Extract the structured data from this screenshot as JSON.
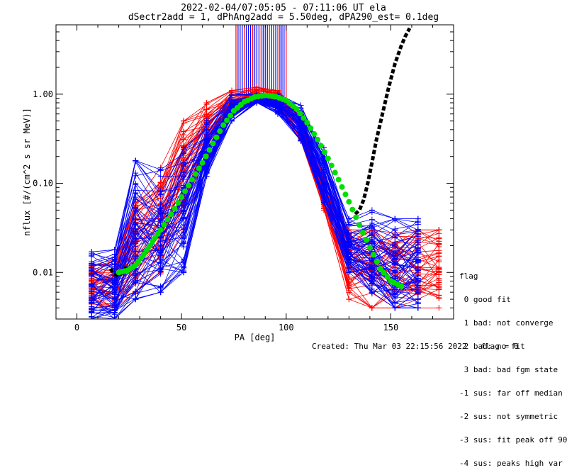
{
  "header": {
    "title": "2022-02-04/07:05:05 - 07:11:06 UT ela",
    "subtitle": "dSectr2add = 1, dPhAng2add = 5.50deg, dPA290_est=   0.1deg"
  },
  "legend": {
    "title": "flag",
    "items": [
      " 0 good fit",
      " 1 bad: not converge",
      " 2 bad: no fit",
      " 3 bad: bad fgm state",
      "-1 sus: far off median",
      "-2 sus: not symmetric",
      "-3 sus: fit peak off 90",
      "-4 sus: peaks high var"
    ]
  },
  "footer": {
    "created": "Created: Thu Mar 03 22:15:56 2022",
    "flag": "flag = 0"
  },
  "colors": {
    "red_series": "#ff0000",
    "blue_series": "#0000ff",
    "fit_curve": "#00e000",
    "black_fit": "#000000"
  },
  "chart_data": {
    "type": "line",
    "xlabel": "PA [deg]",
    "ylabel": "nflux [#/(cm^2 s sr MeV)]",
    "xlim": [
      -10,
      180
    ],
    "ylim": [
      0.003,
      6.0
    ],
    "yscale": "log",
    "xticks": [
      0,
      50,
      100,
      150
    ],
    "yticks": [
      0.01,
      0.1,
      1.0
    ],
    "ytick_labels": [
      "0.01",
      "0.10",
      "1.00"
    ],
    "pa_bins": [
      7,
      18,
      28,
      40,
      51,
      62,
      74,
      86,
      96,
      107,
      118,
      130,
      141,
      152,
      163,
      173
    ],
    "red_envelope": {
      "x": [
        7,
        18,
        28,
        40,
        51,
        62,
        74,
        86,
        96,
        107,
        118,
        130,
        141,
        152,
        163,
        173
      ],
      "lower": [
        0.004,
        0.004,
        0.006,
        0.01,
        0.03,
        0.2,
        0.6,
        0.8,
        0.7,
        0.3,
        0.05,
        0.005,
        0.004,
        0.004,
        0.004,
        0.004
      ],
      "upper": [
        0.012,
        0.014,
        0.06,
        0.15,
        0.5,
        0.8,
        1.1,
        1.2,
        1.1,
        0.6,
        0.12,
        0.03,
        0.03,
        0.03,
        0.03,
        0.03
      ]
    },
    "blue_envelope": {
      "x": [
        7,
        18,
        28,
        40,
        51,
        62,
        74,
        86,
        96,
        107,
        118,
        130,
        141,
        152,
        163
      ],
      "lower": [
        0.003,
        0.003,
        0.005,
        0.006,
        0.01,
        0.12,
        0.5,
        0.8,
        0.6,
        0.3,
        0.06,
        0.01,
        0.006,
        0.004,
        0.004
      ],
      "upper": [
        0.017,
        0.018,
        0.18,
        0.17,
        0.25,
        0.5,
        1.0,
        1.0,
        1.0,
        0.75,
        0.25,
        0.04,
        0.05,
        0.04,
        0.04
      ]
    },
    "fit_curve": {
      "x": [
        20,
        24,
        28,
        32,
        36,
        40,
        45,
        50,
        55,
        60,
        65,
        70,
        75,
        80,
        85,
        90,
        95,
        100,
        105,
        110,
        115,
        120,
        125,
        130,
        135,
        140,
        145,
        150,
        155
      ],
      "y": [
        0.01,
        0.0105,
        0.012,
        0.016,
        0.022,
        0.03,
        0.045,
        0.07,
        0.11,
        0.17,
        0.28,
        0.45,
        0.65,
        0.82,
        0.93,
        0.97,
        0.94,
        0.85,
        0.68,
        0.48,
        0.31,
        0.19,
        0.11,
        0.062,
        0.034,
        0.019,
        0.011,
        0.008,
        0.007
      ]
    },
    "black_fit_left": {
      "x": [
        16,
        18,
        20,
        22,
        24
      ],
      "y": [
        0.011,
        0.0095,
        0.0092,
        0.01,
        0.012
      ]
    },
    "black_fit_right": {
      "x": [
        133,
        135,
        137,
        139,
        141,
        143,
        146,
        149,
        152,
        155,
        157,
        159
      ],
      "y": [
        0.045,
        0.05,
        0.065,
        0.1,
        0.17,
        0.3,
        0.6,
        1.2,
        2.2,
        3.5,
        4.5,
        5.5
      ]
    },
    "vertical_lines": {
      "x": [
        76,
        77,
        78,
        79,
        80,
        81,
        82,
        83,
        84,
        85,
        86,
        87,
        88,
        89,
        90,
        91,
        92,
        93,
        94,
        95,
        96,
        97,
        98,
        99,
        100
      ],
      "top": 6.0
    }
  }
}
